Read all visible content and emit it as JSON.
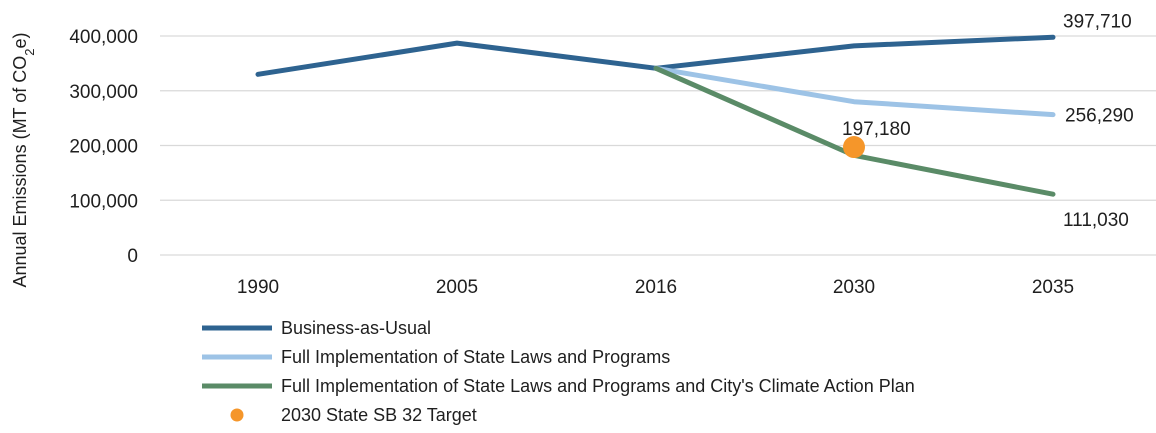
{
  "chart_data": {
    "type": "line",
    "title": "",
    "xlabel": "",
    "ylabel": {
      "prefix": "Annual Emissions (MT of CO",
      "subscript": "2",
      "suffix": "e)"
    },
    "categories": [
      "1990",
      "2005",
      "2016",
      "2030",
      "2035"
    ],
    "ylim": [
      0,
      400000
    ],
    "yticks": [
      0,
      100000,
      200000,
      300000,
      400000
    ],
    "ytick_labels": [
      "0",
      "100,000",
      "200,000",
      "300,000",
      "400,000"
    ],
    "grid": true,
    "legend_position": "bottom",
    "series": [
      {
        "name": "Business-as-Usual",
        "color": "#2e6390",
        "values": [
          330000,
          387000,
          341000,
          382000,
          397710
        ]
      },
      {
        "name": "Full Implementation of State Laws and Programs",
        "color": "#9dc3e6",
        "values": [
          null,
          null,
          341000,
          280000,
          256290
        ]
      },
      {
        "name": "Full Implementation of State Laws and Programs and City's Climate Action Plan",
        "color": "#5a8b67",
        "values": [
          null,
          null,
          341000,
          182000,
          111030
        ]
      }
    ],
    "markers": [
      {
        "name": "2030 State SB 32 Target",
        "color": "#f5962a",
        "category": "2030",
        "value": 197180
      }
    ],
    "data_labels": [
      {
        "text": "397,710",
        "category": "2035",
        "value": 397710,
        "series": "Business-as-Usual"
      },
      {
        "text": "256,290",
        "category": "2035",
        "value": 256290,
        "series": "Full Implementation of State Laws and Programs"
      },
      {
        "text": "111,030",
        "category": "2035",
        "value": 111030,
        "series": "Full Implementation of State Laws and Programs and City's Climate Action Plan"
      },
      {
        "text": "197,180",
        "category": "2030",
        "value": 197180,
        "series": "2030 State SB 32 Target"
      }
    ]
  }
}
